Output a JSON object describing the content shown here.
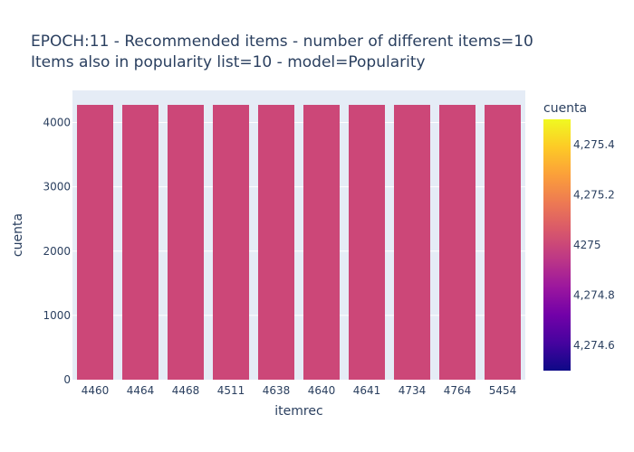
{
  "chart_data": {
    "type": "bar",
    "title_line1": "EPOCH:11 - Recommended items - number of different items=10",
    "title_line2": "Items also in popularity list=10 - model=Popularity",
    "xlabel": "itemrec",
    "ylabel": "cuenta",
    "categories": [
      "4460",
      "4464",
      "4468",
      "4511",
      "4638",
      "4640",
      "4641",
      "4734",
      "4764",
      "5454"
    ],
    "values": [
      4275,
      4275,
      4275,
      4275,
      4275,
      4275,
      4275,
      4275,
      4275,
      4275
    ],
    "ylim": [
      0,
      4500
    ],
    "yticks": [
      0,
      1000,
      2000,
      3000,
      4000
    ],
    "grid": true,
    "bar_color": "#cc4778",
    "plot_background": "#e5ecf6",
    "colorbar": {
      "title": "cuenta",
      "range": [
        4274.5,
        4275.5
      ],
      "tick_values": [
        4274.6,
        4274.8,
        4275,
        4275.2,
        4275.4
      ],
      "tick_labels": [
        "4,274.6",
        "4,274.8",
        "4275",
        "4,275.2",
        "4,275.4"
      ],
      "colorscale": [
        "#0d0887",
        "#46039f",
        "#7201a8",
        "#9c179e",
        "#bd3786",
        "#d8576b",
        "#ed7953",
        "#fb9f3a",
        "#fdca26",
        "#f0f921"
      ]
    }
  }
}
